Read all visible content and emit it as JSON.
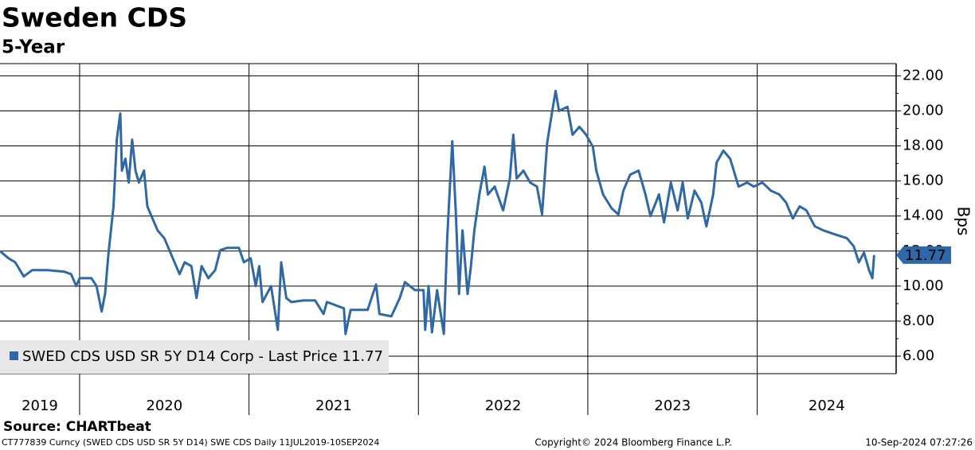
{
  "chart_data": {
    "type": "line",
    "title": "Sweden CDS",
    "subtitle": "5-Year",
    "y_label": "Bps",
    "source": "Source: CHARTbeat",
    "footer_left": "CT777839 Curncy (SWED CDS USD SR 5Y D14) SWE CDS  Daily 11JUL2019-10SEP2024",
    "footer_center": "Copyright© 2024 Bloomberg Finance L.P.",
    "footer_right": "10-Sep-2024 07:27:26",
    "xlim": [
      2019.53,
      2024.82
    ],
    "xticks": [
      2020,
      2021,
      2022,
      2023,
      2024
    ],
    "x_labels": [
      "2019",
      "2020",
      "2021",
      "2022",
      "2023",
      "2024"
    ],
    "ylim": [
      5,
      22.7
    ],
    "yticks": [
      {
        "value": 6,
        "label": "6.00"
      },
      {
        "value": 8,
        "label": "8.00"
      },
      {
        "value": 10,
        "label": "10.00"
      },
      {
        "value": 12,
        "label": "12.00"
      },
      {
        "value": 14,
        "label": "14.00"
      },
      {
        "value": 16,
        "label": "16.00"
      },
      {
        "value": 18,
        "label": "18.00"
      },
      {
        "value": 20,
        "label": "20.00"
      },
      {
        "value": 22,
        "label": "22.00"
      }
    ],
    "grid": true,
    "last_price": 11.77,
    "x": [
      2019.53,
      2019.58,
      2019.62,
      2019.67,
      2019.72,
      2019.81,
      2019.91,
      2019.95,
      2019.98,
      2020.0,
      2020.07,
      2020.1,
      2020.13,
      2020.15,
      2020.17,
      2020.2,
      2020.22,
      2020.24,
      2020.25,
      2020.27,
      2020.29,
      2020.31,
      2020.33,
      2020.35,
      2020.38,
      2020.4,
      2020.42,
      2020.46,
      2020.5,
      2020.54,
      2020.59,
      2020.62,
      2020.66,
      2020.69,
      2020.72,
      2020.76,
      2020.8,
      2020.83,
      2020.87,
      2020.94,
      2020.97,
      2021.01,
      2021.04,
      2021.06,
      2021.08,
      2021.13,
      2021.17,
      2021.19,
      2021.22,
      2021.25,
      2021.32,
      2021.39,
      2021.44,
      2021.46,
      2021.56,
      2021.57,
      2021.6,
      2021.7,
      2021.75,
      2021.77,
      2021.84,
      2021.89,
      2021.92,
      2021.98,
      2022.03,
      2022.04,
      2022.06,
      2022.08,
      2022.11,
      2022.15,
      2022.17,
      2022.2,
      2022.22,
      2022.24,
      2022.26,
      2022.29,
      2022.31,
      2022.33,
      2022.36,
      2022.39,
      2022.41,
      2022.45,
      2022.5,
      2022.54,
      2022.56,
      2022.58,
      2022.62,
      2022.66,
      2022.7,
      2022.73,
      2022.76,
      2022.79,
      2022.81,
      2022.83,
      2022.88,
      2022.91,
      2022.95,
      2022.99,
      2023.03,
      2023.05,
      2023.09,
      2023.14,
      2023.18,
      2023.21,
      2023.25,
      2023.3,
      2023.34,
      2023.37,
      2023.42,
      2023.45,
      2023.49,
      2023.53,
      2023.56,
      2023.59,
      2023.63,
      2023.67,
      2023.7,
      2023.74,
      2023.76,
      2023.8,
      2023.84,
      2023.89,
      2023.94,
      2023.98,
      2024.03,
      2024.08,
      2024.13,
      2024.17,
      2024.21,
      2024.25,
      2024.29,
      2024.34,
      2024.39,
      2024.46,
      2024.53,
      2024.57,
      2024.6,
      2024.63,
      2024.66,
      2024.68,
      2024.69
    ],
    "series": [
      {
        "name": "SWED CDS USD SR 5Y D14 Corp - Last Price 11.77",
        "color": "#2f68a6",
        "values": [
          12.0,
          11.59,
          11.36,
          10.55,
          10.91,
          10.91,
          10.82,
          10.68,
          10.0,
          10.45,
          10.45,
          10.0,
          8.55,
          9.55,
          11.82,
          14.55,
          18.41,
          19.86,
          16.59,
          17.27,
          15.91,
          18.36,
          16.59,
          15.91,
          16.59,
          14.55,
          14.09,
          13.18,
          12.73,
          11.82,
          10.68,
          11.36,
          11.14,
          9.32,
          11.14,
          10.45,
          10.91,
          12.05,
          12.18,
          12.18,
          11.36,
          11.59,
          10.0,
          11.14,
          9.09,
          10.0,
          7.5,
          11.36,
          9.32,
          9.09,
          9.18,
          9.18,
          8.41,
          9.09,
          8.73,
          7.27,
          8.64,
          8.64,
          10.09,
          8.41,
          8.27,
          9.32,
          10.23,
          9.77,
          9.77,
          7.5,
          10.0,
          7.36,
          9.77,
          7.27,
          12.73,
          18.27,
          14.32,
          9.55,
          13.18,
          9.55,
          11.14,
          13.18,
          15.23,
          16.82,
          15.23,
          15.68,
          14.32,
          16.14,
          18.64,
          16.14,
          16.59,
          15.91,
          15.68,
          14.09,
          18.18,
          20.0,
          21.14,
          20.0,
          20.23,
          18.64,
          19.09,
          18.64,
          17.95,
          16.59,
          15.23,
          14.45,
          14.09,
          15.45,
          16.36,
          16.59,
          15.23,
          14.0,
          15.23,
          13.64,
          15.91,
          14.32,
          15.91,
          13.86,
          15.45,
          14.77,
          13.41,
          15.23,
          17.05,
          17.73,
          17.27,
          15.68,
          15.91,
          15.68,
          15.91,
          15.45,
          15.23,
          14.77,
          13.86,
          14.55,
          14.32,
          13.41,
          13.18,
          12.95,
          12.73,
          12.27,
          11.36,
          11.91,
          10.91,
          10.45,
          11.77
        ]
      }
    ]
  }
}
